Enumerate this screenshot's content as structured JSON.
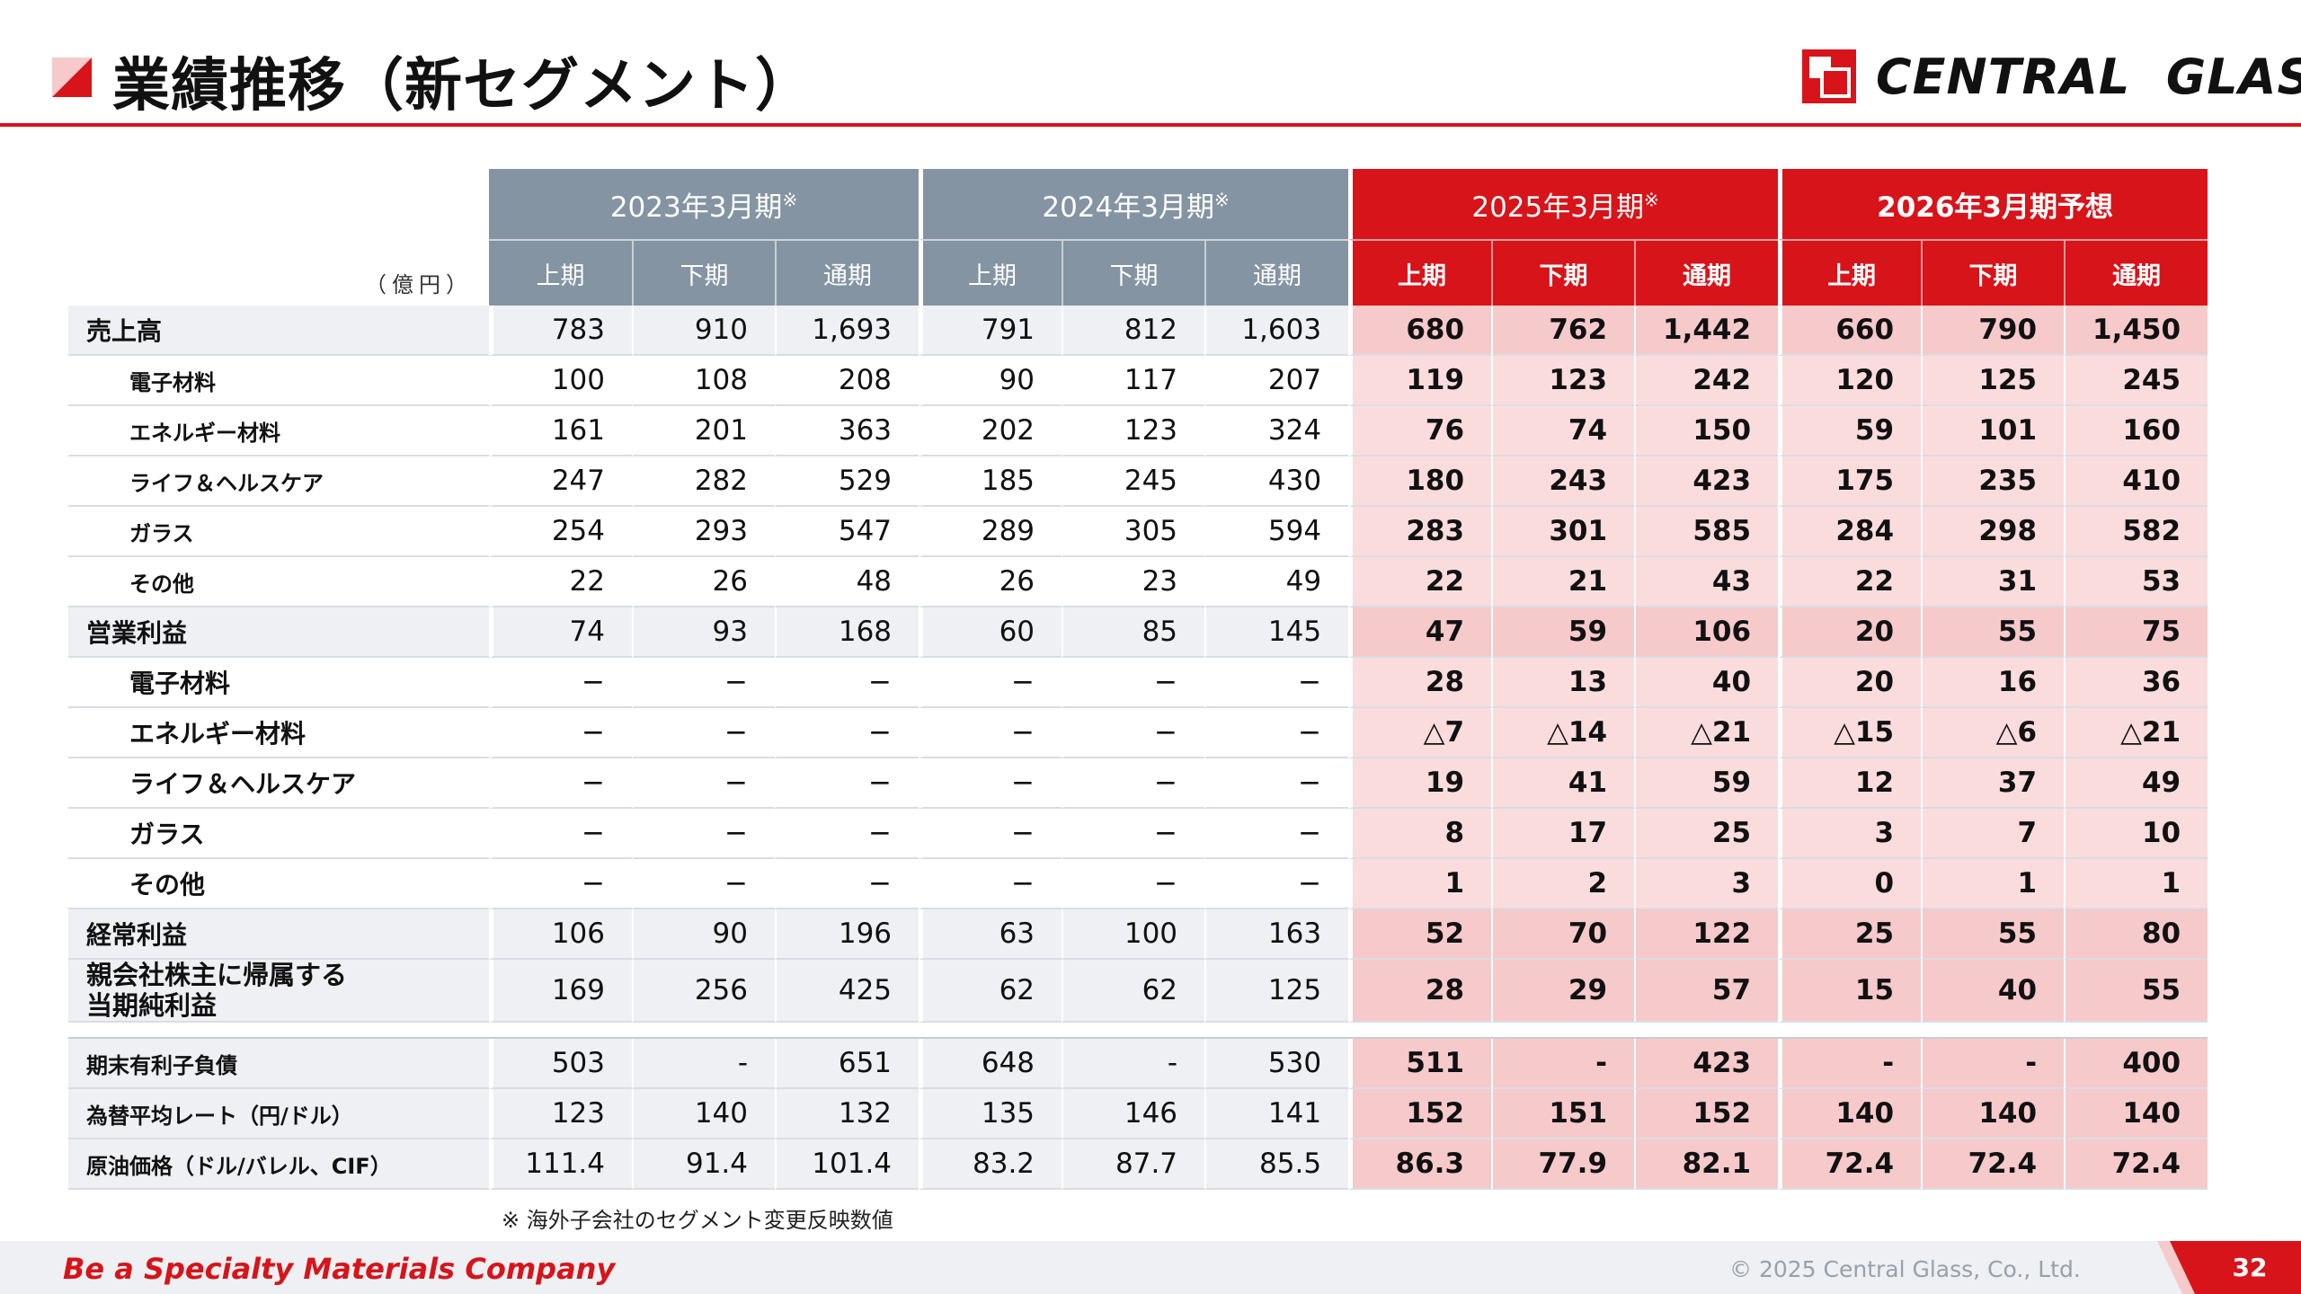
{
  "header": {
    "title": "業績推移（新セグメント）",
    "logo_text": "CENTRAL  GLASS"
  },
  "table": {
    "unit": "（億円）",
    "periods": [
      {
        "label": "2023年3月期",
        "mark": "※"
      },
      {
        "label": "2024年3月期",
        "mark": "※"
      },
      {
        "label": "2025年3月期",
        "mark": "※"
      },
      {
        "label": "2026年3月期予想",
        "mark": ""
      }
    ],
    "sub_headers": [
      "上期",
      "下期",
      "通期"
    ],
    "rows": [
      {
        "label": "売上高",
        "values": [
          "783",
          "910",
          "1,693",
          "791",
          "812",
          "1,603",
          "680",
          "762",
          "1,442",
          "660",
          "790",
          "1,450"
        ]
      },
      {
        "label": "電子材料",
        "values": [
          "100",
          "108",
          "208",
          "90",
          "117",
          "207",
          "119",
          "123",
          "242",
          "120",
          "125",
          "245"
        ]
      },
      {
        "label": "エネルギー材料",
        "values": [
          "161",
          "201",
          "363",
          "202",
          "123",
          "324",
          "76",
          "74",
          "150",
          "59",
          "101",
          "160"
        ]
      },
      {
        "label": "ライフ＆ヘルスケア",
        "values": [
          "247",
          "282",
          "529",
          "185",
          "245",
          "430",
          "180",
          "243",
          "423",
          "175",
          "235",
          "410"
        ]
      },
      {
        "label": "ガラス",
        "values": [
          "254",
          "293",
          "547",
          "289",
          "305",
          "594",
          "283",
          "301",
          "585",
          "284",
          "298",
          "582"
        ]
      },
      {
        "label": "その他",
        "values": [
          "22",
          "26",
          "48",
          "26",
          "23",
          "49",
          "22",
          "21",
          "43",
          "22",
          "31",
          "53"
        ]
      },
      {
        "label": "営業利益",
        "values": [
          "74",
          "93",
          "168",
          "60",
          "85",
          "145",
          "47",
          "59",
          "106",
          "20",
          "55",
          "75"
        ]
      },
      {
        "label": "電子材料",
        "values": [
          "−",
          "−",
          "−",
          "−",
          "−",
          "−",
          "28",
          "13",
          "40",
          "20",
          "16",
          "36"
        ]
      },
      {
        "label": "エネルギー材料",
        "values": [
          "−",
          "−",
          "−",
          "−",
          "−",
          "−",
          "△7",
          "△14",
          "△21",
          "△15",
          "△6",
          "△21"
        ]
      },
      {
        "label": "ライフ＆ヘルスケア",
        "values": [
          "−",
          "−",
          "−",
          "−",
          "−",
          "−",
          "19",
          "41",
          "59",
          "12",
          "37",
          "49"
        ]
      },
      {
        "label": "ガラス",
        "values": [
          "−",
          "−",
          "−",
          "−",
          "−",
          "−",
          "8",
          "17",
          "25",
          "3",
          "7",
          "10"
        ]
      },
      {
        "label": "その他",
        "values": [
          "−",
          "−",
          "−",
          "−",
          "−",
          "−",
          "1",
          "2",
          "3",
          "0",
          "1",
          "1"
        ]
      },
      {
        "label": "経常利益",
        "values": [
          "106",
          "90",
          "196",
          "63",
          "100",
          "163",
          "52",
          "70",
          "122",
          "25",
          "55",
          "80"
        ]
      },
      {
        "label": "親会社株主に帰属する当期純利益",
        "label_line1": "親会社株主に帰属する",
        "label_line2": "当期純利益",
        "values": [
          "169",
          "256",
          "425",
          "62",
          "62",
          "125",
          "28",
          "29",
          "57",
          "15",
          "40",
          "55"
        ]
      },
      {
        "label": "期末有利子負債",
        "values": [
          "503",
          "-",
          "651",
          "648",
          "-",
          "530",
          "511",
          "-",
          "423",
          "-",
          "-",
          "400"
        ]
      },
      {
        "label": "為替平均レート（円/ドル）",
        "values": [
          "123",
          "140",
          "132",
          "135",
          "146",
          "141",
          "152",
          "151",
          "152",
          "140",
          "140",
          "140"
        ]
      },
      {
        "label": "原油価格（ドル/バレル、CIF）",
        "values": [
          "111.4",
          "91.4",
          "101.4",
          "83.2",
          "87.7",
          "85.5",
          "86.3",
          "77.9",
          "82.1",
          "72.4",
          "72.4",
          "72.4"
        ]
      }
    ]
  },
  "note": "※ 海外子会社のセグメント変更反映数値",
  "footer": {
    "tagline": "Be a Specialty Materials Company",
    "copyright": "© 2025 Central Glass, Co., Ltd.",
    "page_number": "32"
  },
  "colors": {
    "accent_red": "#d7141a",
    "header_gray": "#8494a3",
    "row_gray": "#eef0f3",
    "highlight_pink": "#fbdcdd"
  }
}
